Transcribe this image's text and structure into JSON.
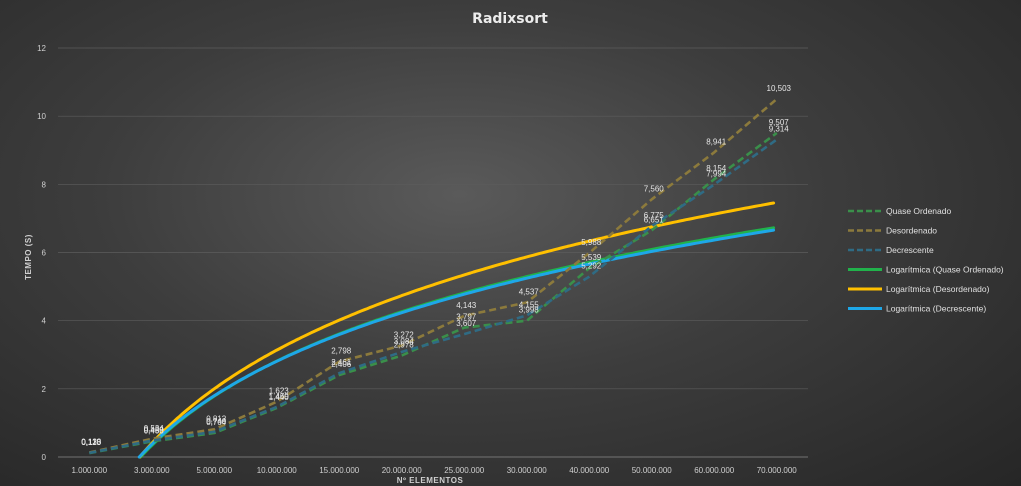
{
  "chart_data": {
    "type": "line",
    "title": "Radixsort",
    "xlabel": "Nº ELEMENTOS",
    "ylabel": "TEMPO (S)",
    "categories": [
      "1.000.000",
      "3.000.000",
      "5.000.000",
      "10.000.000",
      "15.000.000",
      "20.000.000",
      "25.000.000",
      "30.000.000",
      "40.000.000",
      "50.000.000",
      "60.000.000",
      "70.000.000"
    ],
    "ylim": [
      0,
      12
    ],
    "yticks": [
      "0",
      "2",
      "4",
      "6",
      "8",
      "10",
      "12"
    ],
    "grid": true,
    "legend_position": "right",
    "series": [
      {
        "name": "Quase Ordenado",
        "style": "dashed",
        "color": "#3a8f4a",
        "values": [
          0.115,
          0.458,
          0.704,
          1.44,
          2.406,
          2.978,
          3.797,
          3.998,
          5.539,
          6.651,
          8.154,
          9.507
        ],
        "labels": [
          "0,115",
          "0,458",
          "0,704",
          "1,440",
          "2,406",
          "2,978",
          "3,797",
          "3,998",
          "5,539",
          "6,651",
          "8,154",
          "9,507"
        ]
      },
      {
        "name": "Desordenado",
        "style": "dashed",
        "color": "#8c7a3c",
        "values": [
          0.133,
          0.534,
          0.812,
          1.623,
          2.798,
          3.272,
          4.143,
          4.537,
          5.988,
          7.56,
          8.941,
          10.503
        ],
        "labels": [
          "0,133",
          "0,534",
          "0,812",
          "1,623",
          "2,798",
          "3,272",
          "4,143",
          "4,537",
          "5,988",
          "7,560",
          "8,941",
          "10,503"
        ]
      },
      {
        "name": "Decrescente",
        "style": "dashed",
        "color": "#2f6b84",
        "values": [
          0.12,
          0.48,
          0.74,
          1.469,
          2.461,
          3.084,
          3.607,
          4.155,
          5.292,
          6.775,
          7.994,
          9.314
        ],
        "labels": [
          "0,120",
          "0,480",
          "0,740",
          "1,469",
          "2,461",
          "3,084",
          "3,607",
          "4,155",
          "5,292",
          "6,775",
          "7,994",
          "9,314"
        ]
      },
      {
        "name": "Logarítmica (Quase Ordenado)",
        "style": "solid",
        "color": "#21b24b",
        "trend": "log",
        "source": 0
      },
      {
        "name": "Logarítmica (Desordenado)",
        "style": "solid",
        "color": "#ffc000",
        "trend": "log",
        "source": 1
      },
      {
        "name": "Logarítmica (Decrescente)",
        "style": "solid",
        "color": "#1ea7e8",
        "trend": "log",
        "source": 2
      }
    ]
  }
}
